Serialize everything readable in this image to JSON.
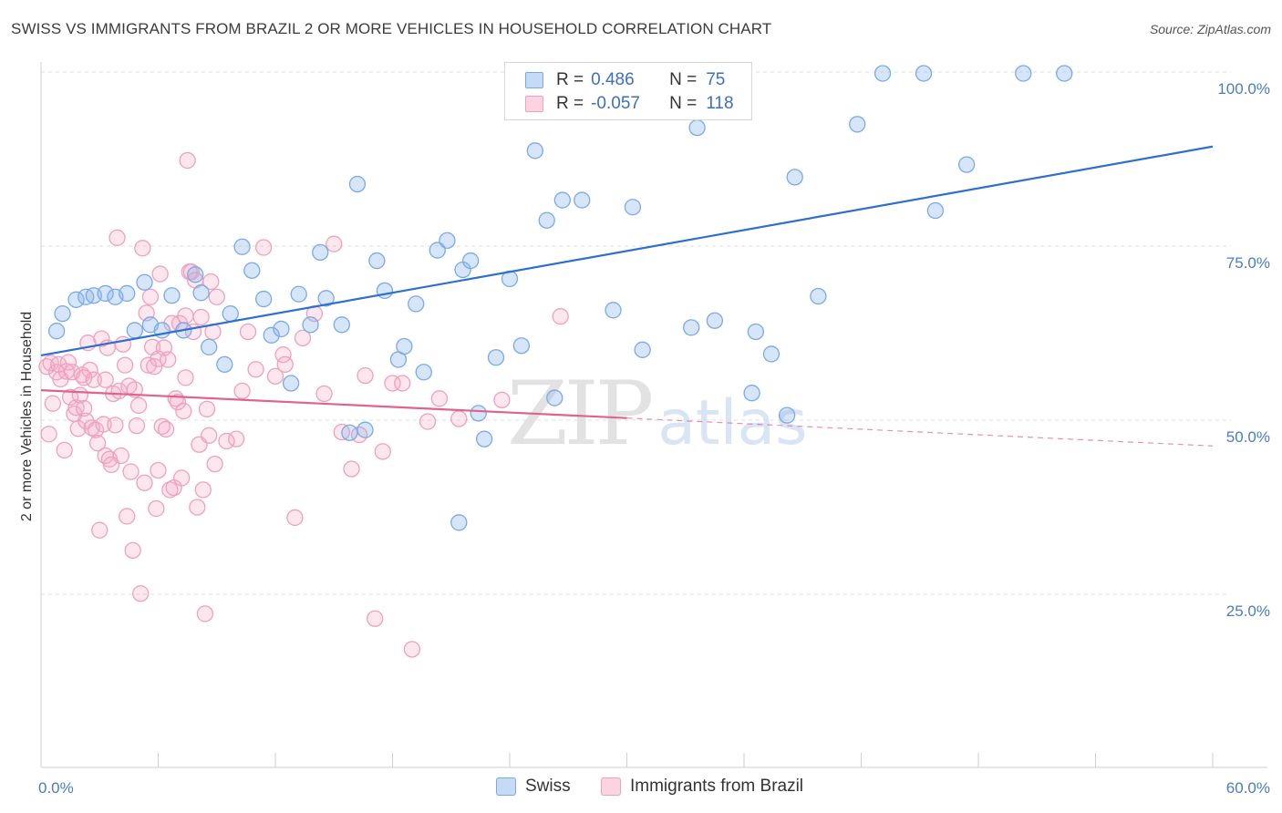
{
  "title": "SWISS VS IMMIGRANTS FROM BRAZIL 2 OR MORE VEHICLES IN HOUSEHOLD CORRELATION CHART",
  "source": "Source: ZipAtlas.com",
  "watermark": {
    "zip": "ZIP",
    "atlas": "atlas"
  },
  "legend": {
    "r_label": "R =",
    "n_label": "N =",
    "rows": [
      {
        "series": "Swiss",
        "r": "0.486",
        "n": "75"
      },
      {
        "series": "Immigrants from Brazil",
        "r": "-0.057",
        "n": "118"
      }
    ]
  },
  "colors": {
    "swiss": "#7aaae6",
    "swiss_line": "#2f6fcd",
    "brazil": "#f0a0bc",
    "brazil_line": "#e0628e"
  },
  "chart_data": {
    "type": "scatter",
    "title": "SWISS VS IMMIGRANTS FROM BRAZIL 2 OR MORE VEHICLES IN HOUSEHOLD CORRELATION CHART",
    "xlabel": "",
    "ylabel": "2 or more Vehicles in Household",
    "xlim": [
      0,
      60
    ],
    "ylim": [
      5,
      102
    ],
    "x_tick_labels": [
      "0.0%",
      "60.0%"
    ],
    "y_ticks": [
      25,
      50,
      75,
      100
    ],
    "y_tick_labels": [
      "25.0%",
      "50.0%",
      "75.0%",
      "100.0%"
    ],
    "grid": true,
    "legend_position": "top-center",
    "series": [
      {
        "name": "Swiss",
        "trend": {
          "x": [
            0,
            60
          ],
          "y": [
            59.3,
            89.3
          ]
        },
        "points": [
          [
            0.8,
            62.8
          ],
          [
            1.1,
            65.3
          ],
          [
            1.8,
            67.3
          ],
          [
            2.3,
            67.7
          ],
          [
            2.7,
            67.9
          ],
          [
            3.3,
            68.2
          ],
          [
            3.8,
            67.7
          ],
          [
            4.4,
            68.2
          ],
          [
            4.8,
            62.9
          ],
          [
            5.3,
            69.8
          ],
          [
            5.6,
            63.7
          ],
          [
            6.2,
            62.9
          ],
          [
            6.7,
            67.9
          ],
          [
            7.3,
            62.9
          ],
          [
            7.9,
            70.9
          ],
          [
            8.2,
            68.3
          ],
          [
            8.6,
            60.5
          ],
          [
            9.4,
            58.0
          ],
          [
            9.7,
            65.3
          ],
          [
            10.3,
            74.9
          ],
          [
            10.8,
            71.5
          ],
          [
            11.4,
            67.4
          ],
          [
            11.8,
            62.2
          ],
          [
            12.3,
            63.1
          ],
          [
            12.8,
            55.3
          ],
          [
            13.2,
            68.1
          ],
          [
            13.8,
            63.7
          ],
          [
            14.3,
            74.1
          ],
          [
            14.6,
            67.5
          ],
          [
            15.4,
            63.7
          ],
          [
            15.8,
            48.2
          ],
          [
            16.2,
            83.9
          ],
          [
            16.6,
            48.6
          ],
          [
            17.2,
            72.9
          ],
          [
            17.6,
            68.6
          ],
          [
            18.3,
            58.7
          ],
          [
            18.6,
            60.6
          ],
          [
            19.2,
            66.7
          ],
          [
            19.6,
            56.9
          ],
          [
            20.3,
            74.4
          ],
          [
            20.8,
            75.8
          ],
          [
            21.6,
            71.6
          ],
          [
            22.0,
            72.9
          ],
          [
            22.4,
            51.0
          ],
          [
            22.7,
            47.3
          ],
          [
            23.3,
            59.0
          ],
          [
            24.0,
            70.3
          ],
          [
            24.6,
            60.7
          ],
          [
            25.3,
            88.7
          ],
          [
            25.9,
            78.7
          ],
          [
            26.3,
            53.2
          ],
          [
            26.7,
            81.6
          ],
          [
            27.7,
            81.6
          ],
          [
            29.3,
            65.8
          ],
          [
            30.3,
            80.6
          ],
          [
            30.8,
            60.1
          ],
          [
            32.3,
            99.8
          ],
          [
            33.3,
            63.3
          ],
          [
            33.6,
            92.0
          ],
          [
            34.5,
            64.3
          ],
          [
            35.0,
            96.5
          ],
          [
            36.4,
            53.9
          ],
          [
            36.6,
            62.7
          ],
          [
            37.4,
            59.5
          ],
          [
            38.2,
            50.7
          ],
          [
            38.6,
            84.9
          ],
          [
            39.8,
            67.8
          ],
          [
            41.8,
            92.5
          ],
          [
            43.1,
            99.8
          ],
          [
            45.2,
            99.8
          ],
          [
            45.8,
            80.1
          ],
          [
            47.4,
            86.7
          ],
          [
            50.3,
            99.8
          ],
          [
            52.4,
            99.8
          ],
          [
            21.4,
            35.3
          ]
        ]
      },
      {
        "name": "Immigrants from Brazil",
        "trend": {
          "x": [
            0,
            30
          ],
          "y": [
            54.3,
            50.3
          ],
          "dashed_to": {
            "x": 60,
            "y": 46.3
          }
        },
        "points": [
          [
            0.3,
            57.7
          ],
          [
            0.4,
            48.0
          ],
          [
            0.5,
            58.2
          ],
          [
            0.6,
            52.4
          ],
          [
            0.8,
            56.9
          ],
          [
            0.9,
            58.0
          ],
          [
            1.0,
            55.9
          ],
          [
            1.2,
            45.7
          ],
          [
            1.3,
            57.0
          ],
          [
            1.4,
            58.3
          ],
          [
            1.5,
            53.3
          ],
          [
            1.6,
            56.9
          ],
          [
            1.7,
            50.9
          ],
          [
            1.8,
            51.8
          ],
          [
            1.9,
            48.8
          ],
          [
            2.0,
            53.6
          ],
          [
            2.1,
            56.5
          ],
          [
            2.2,
            51.7
          ],
          [
            2.3,
            49.9
          ],
          [
            2.4,
            61.1
          ],
          [
            2.5,
            57.2
          ],
          [
            2.6,
            48.9
          ],
          [
            2.7,
            55.8
          ],
          [
            2.8,
            48.6
          ],
          [
            2.9,
            46.7
          ],
          [
            3.0,
            34.2
          ],
          [
            3.1,
            61.7
          ],
          [
            3.2,
            49.4
          ],
          [
            3.3,
            44.9
          ],
          [
            3.4,
            60.4
          ],
          [
            3.5,
            44.4
          ],
          [
            3.6,
            43.6
          ],
          [
            3.7,
            53.8
          ],
          [
            3.8,
            49.3
          ],
          [
            3.9,
            76.2
          ],
          [
            4.0,
            54.2
          ],
          [
            4.1,
            44.9
          ],
          [
            4.2,
            60.9
          ],
          [
            4.3,
            57.9
          ],
          [
            4.4,
            36.2
          ],
          [
            4.5,
            54.9
          ],
          [
            4.6,
            42.6
          ],
          [
            4.7,
            31.3
          ],
          [
            4.8,
            54.4
          ],
          [
            4.9,
            49.2
          ],
          [
            5.0,
            52.1
          ],
          [
            5.1,
            25.1
          ],
          [
            5.2,
            74.7
          ],
          [
            5.3,
            41.0
          ],
          [
            5.4,
            65.4
          ],
          [
            5.5,
            57.9
          ],
          [
            5.6,
            67.7
          ],
          [
            5.7,
            60.5
          ],
          [
            5.8,
            57.7
          ],
          [
            5.9,
            37.3
          ],
          [
            6.0,
            42.8
          ],
          [
            6.1,
            71.0
          ],
          [
            6.2,
            49.1
          ],
          [
            6.3,
            60.4
          ],
          [
            6.4,
            48.7
          ],
          [
            6.5,
            58.7
          ],
          [
            6.6,
            40.0
          ],
          [
            6.7,
            63.9
          ],
          [
            6.8,
            40.3
          ],
          [
            6.9,
            53.1
          ],
          [
            7.0,
            52.6
          ],
          [
            7.1,
            63.9
          ],
          [
            7.2,
            41.7
          ],
          [
            7.3,
            51.3
          ],
          [
            7.4,
            65.0
          ],
          [
            7.5,
            87.3
          ],
          [
            7.6,
            71.3
          ],
          [
            7.7,
            71.3
          ],
          [
            7.8,
            62.7
          ],
          [
            7.9,
            70.1
          ],
          [
            8.0,
            37.5
          ],
          [
            8.1,
            46.5
          ],
          [
            8.2,
            64.8
          ],
          [
            8.3,
            40.0
          ],
          [
            8.4,
            22.2
          ],
          [
            8.5,
            51.6
          ],
          [
            8.6,
            47.8
          ],
          [
            8.7,
            69.9
          ],
          [
            8.8,
            62.7
          ],
          [
            8.9,
            43.7
          ],
          [
            9.0,
            67.7
          ],
          [
            10.0,
            47.3
          ],
          [
            10.3,
            54.2
          ],
          [
            10.6,
            62.7
          ],
          [
            11.0,
            57.3
          ],
          [
            11.4,
            74.8
          ],
          [
            12.0,
            56.3
          ],
          [
            12.4,
            59.4
          ],
          [
            13.0,
            36.0
          ],
          [
            13.4,
            61.8
          ],
          [
            14.0,
            65.3
          ],
          [
            14.5,
            53.8
          ],
          [
            15.0,
            75.3
          ],
          [
            15.4,
            48.3
          ],
          [
            15.9,
            43.0
          ],
          [
            16.3,
            47.9
          ],
          [
            16.6,
            56.4
          ],
          [
            17.1,
            21.5
          ],
          [
            17.5,
            45.5
          ],
          [
            18.0,
            55.3
          ],
          [
            18.5,
            55.3
          ],
          [
            19.0,
            17.1
          ],
          [
            19.8,
            49.8
          ],
          [
            20.4,
            53.1
          ],
          [
            21.4,
            50.2
          ],
          [
            23.6,
            52.9
          ],
          [
            26.6,
            64.9
          ],
          [
            9.5,
            47.0
          ],
          [
            12.5,
            58.0
          ],
          [
            6.0,
            58.8
          ],
          [
            2.2,
            56.1
          ],
          [
            3.3,
            55.8
          ],
          [
            7.4,
            56.1
          ]
        ]
      }
    ]
  }
}
